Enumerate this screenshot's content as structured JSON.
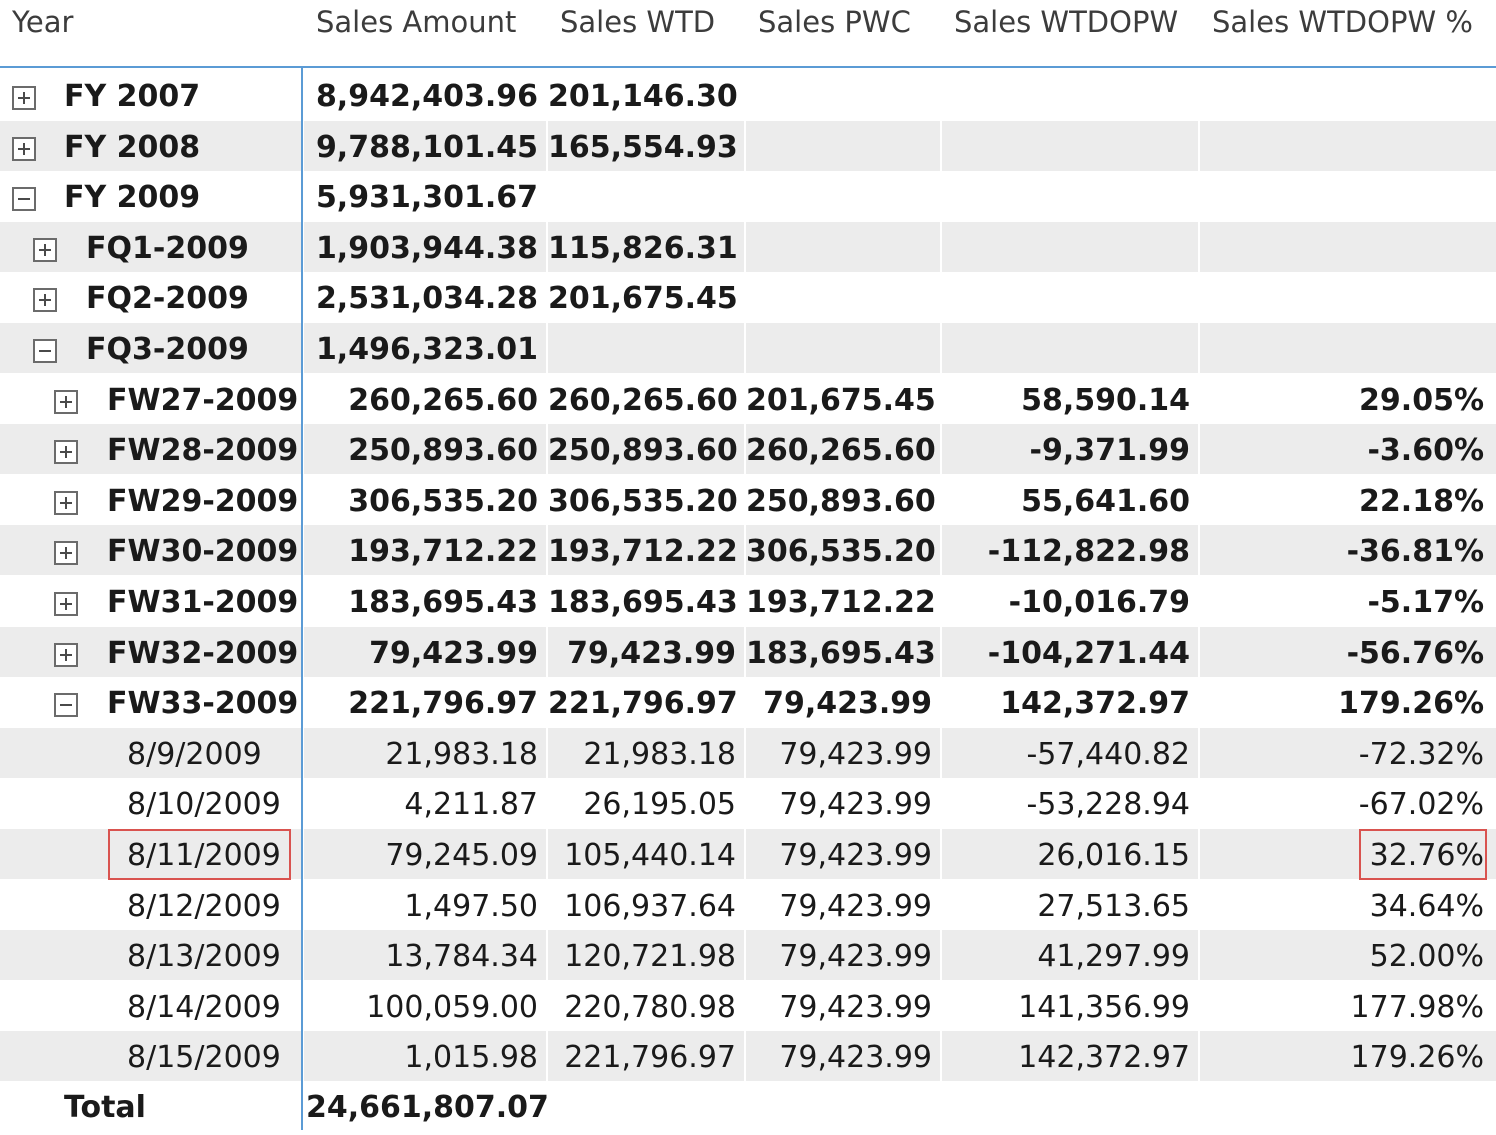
{
  "columns": {
    "year": "Year",
    "sales_amount": "Sales Amount",
    "sales_wtd": "Sales WTD",
    "sales_pwc": "Sales PWC",
    "sales_wtdopw": "Sales WTDOPW",
    "sales_wtdopw_pct": "Sales WTDOPW %"
  },
  "rows": [
    {
      "label": "FY 2007",
      "toggle": "plus",
      "sales_amount": "8,942,403.96",
      "sales_wtd": "201,146.30",
      "sales_pwc": "",
      "sales_wtdopw": "",
      "sales_wtdopw_pct": ""
    },
    {
      "label": "FY 2008",
      "toggle": "plus",
      "sales_amount": "9,788,101.45",
      "sales_wtd": "165,554.93",
      "sales_pwc": "",
      "sales_wtdopw": "",
      "sales_wtdopw_pct": ""
    },
    {
      "label": "FY 2009",
      "toggle": "minus",
      "sales_amount": "5,931,301.67",
      "sales_wtd": "",
      "sales_pwc": "",
      "sales_wtdopw": "",
      "sales_wtdopw_pct": ""
    },
    {
      "label": "FQ1-2009",
      "toggle": "plus",
      "sales_amount": "1,903,944.38",
      "sales_wtd": "115,826.31",
      "sales_pwc": "",
      "sales_wtdopw": "",
      "sales_wtdopw_pct": ""
    },
    {
      "label": "FQ2-2009",
      "toggle": "plus",
      "sales_amount": "2,531,034.28",
      "sales_wtd": "201,675.45",
      "sales_pwc": "",
      "sales_wtdopw": "",
      "sales_wtdopw_pct": ""
    },
    {
      "label": "FQ3-2009",
      "toggle": "minus",
      "sales_amount": "1,496,323.01",
      "sales_wtd": "",
      "sales_pwc": "",
      "sales_wtdopw": "",
      "sales_wtdopw_pct": ""
    },
    {
      "label": "FW27-2009",
      "toggle": "plus",
      "sales_amount": "260,265.60",
      "sales_wtd": "260,265.60",
      "sales_pwc": "201,675.45",
      "sales_wtdopw": "58,590.14",
      "sales_wtdopw_pct": "29.05%"
    },
    {
      "label": "FW28-2009",
      "toggle": "plus",
      "sales_amount": "250,893.60",
      "sales_wtd": "250,893.60",
      "sales_pwc": "260,265.60",
      "sales_wtdopw": "-9,371.99",
      "sales_wtdopw_pct": "-3.60%"
    },
    {
      "label": "FW29-2009",
      "toggle": "plus",
      "sales_amount": "306,535.20",
      "sales_wtd": "306,535.20",
      "sales_pwc": "250,893.60",
      "sales_wtdopw": "55,641.60",
      "sales_wtdopw_pct": "22.18%"
    },
    {
      "label": "FW30-2009",
      "toggle": "plus",
      "sales_amount": "193,712.22",
      "sales_wtd": "193,712.22",
      "sales_pwc": "306,535.20",
      "sales_wtdopw": "-112,822.98",
      "sales_wtdopw_pct": "-36.81%"
    },
    {
      "label": "FW31-2009",
      "toggle": "plus",
      "sales_amount": "183,695.43",
      "sales_wtd": "183,695.43",
      "sales_pwc": "193,712.22",
      "sales_wtdopw": "-10,016.79",
      "sales_wtdopw_pct": "-5.17%"
    },
    {
      "label": "FW32-2009",
      "toggle": "plus",
      "sales_amount": "79,423.99",
      "sales_wtd": "79,423.99",
      "sales_pwc": "183,695.43",
      "sales_wtdopw": "-104,271.44",
      "sales_wtdopw_pct": "-56.76%"
    },
    {
      "label": "FW33-2009",
      "toggle": "minus",
      "sales_amount": "221,796.97",
      "sales_wtd": "221,796.97",
      "sales_pwc": "79,423.99",
      "sales_wtdopw": "142,372.97",
      "sales_wtdopw_pct": "179.26%"
    },
    {
      "label": "8/9/2009",
      "toggle": "",
      "sales_amount": "21,983.18",
      "sales_wtd": "21,983.18",
      "sales_pwc": "79,423.99",
      "sales_wtdopw": "-57,440.82",
      "sales_wtdopw_pct": "-72.32%"
    },
    {
      "label": "8/10/2009",
      "toggle": "",
      "sales_amount": "4,211.87",
      "sales_wtd": "26,195.05",
      "sales_pwc": "79,423.99",
      "sales_wtdopw": "-53,228.94",
      "sales_wtdopw_pct": "-67.02%"
    },
    {
      "label": "8/11/2009",
      "toggle": "",
      "sales_amount": "79,245.09",
      "sales_wtd": "105,440.14",
      "sales_pwc": "79,423.99",
      "sales_wtdopw": "26,016.15",
      "sales_wtdopw_pct": "32.76%"
    },
    {
      "label": "8/12/2009",
      "toggle": "",
      "sales_amount": "1,497.50",
      "sales_wtd": "106,937.64",
      "sales_pwc": "79,423.99",
      "sales_wtdopw": "27,513.65",
      "sales_wtdopw_pct": "34.64%"
    },
    {
      "label": "8/13/2009",
      "toggle": "",
      "sales_amount": "13,784.34",
      "sales_wtd": "120,721.98",
      "sales_pwc": "79,423.99",
      "sales_wtdopw": "41,297.99",
      "sales_wtdopw_pct": "52.00%"
    },
    {
      "label": "8/14/2009",
      "toggle": "",
      "sales_amount": "100,059.00",
      "sales_wtd": "220,780.98",
      "sales_pwc": "79,423.99",
      "sales_wtdopw": "141,356.99",
      "sales_wtdopw_pct": "177.98%"
    },
    {
      "label": "8/15/2009",
      "toggle": "",
      "sales_amount": "1,015.98",
      "sales_wtd": "221,796.97",
      "sales_pwc": "79,423.99",
      "sales_wtdopw": "142,372.97",
      "sales_wtdopw_pct": "179.26%"
    }
  ],
  "total": {
    "label": "Total",
    "sales_amount": "24,661,807.07"
  },
  "highlight_row": "8/11/2009",
  "colors": {
    "header_rule": "#5b9bd5",
    "row_shade": "#ececec",
    "highlight_box": "#d9534f"
  }
}
